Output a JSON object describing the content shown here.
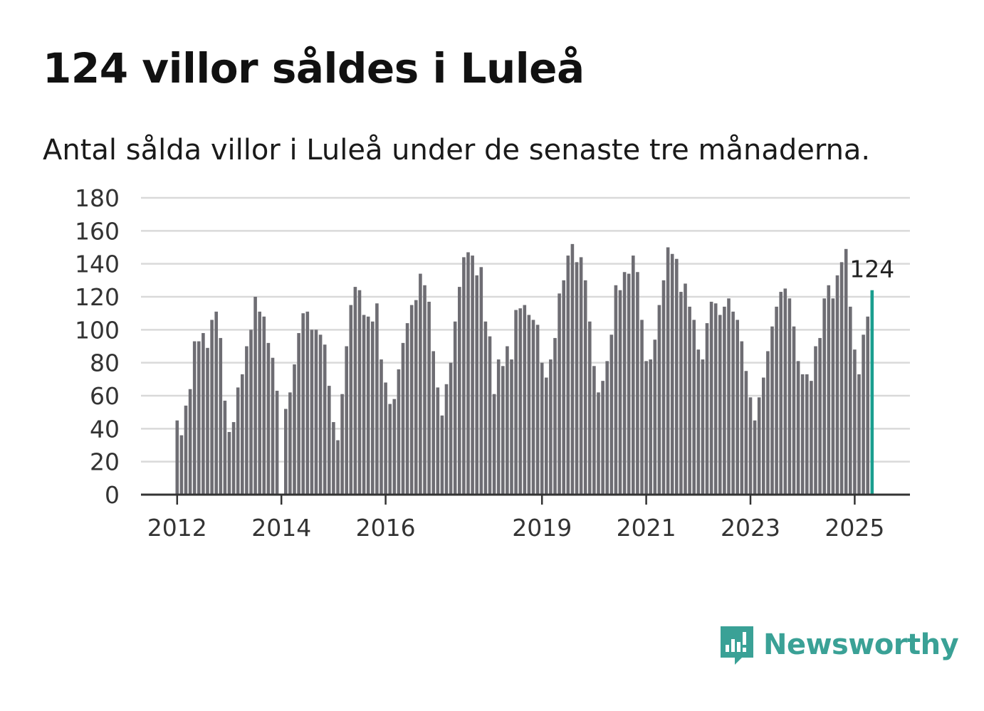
{
  "title": "124 villor såldes i Luleå",
  "subtitle": "Antal sålda villor i Luleå under de senaste tre månaderna.",
  "brand": {
    "name": "Newsworthy",
    "icon": "newsworthy-logo-icon",
    "color": "#3aa196"
  },
  "colors": {
    "bar": "#6e6d73",
    "highlight": "#1a9e8f",
    "grid": "#d9d9d9",
    "axis": "#333333"
  },
  "chart_data": {
    "type": "bar",
    "ylim": [
      0,
      180
    ],
    "yticks": [
      0,
      20,
      40,
      60,
      80,
      100,
      120,
      140,
      160,
      180
    ],
    "xticks": [
      "2012",
      "2014",
      "2016",
      "2019",
      "2021",
      "2023",
      "2025"
    ],
    "grid": true,
    "first_period": "2012-01",
    "highlight_label": "124",
    "series": [
      {
        "values": [
          45,
          36,
          54,
          64,
          93,
          93,
          98,
          89,
          106,
          111,
          95,
          57,
          38,
          44,
          65,
          73,
          90,
          100,
          120,
          111,
          108,
          92,
          83,
          63,
          null,
          52,
          62,
          79,
          98,
          110,
          111,
          100,
          100,
          97,
          91,
          66,
          44,
          33,
          61,
          90,
          115,
          126,
          124,
          109,
          108,
          105,
          116,
          82,
          68,
          55,
          58,
          76,
          92,
          104,
          115,
          118,
          134,
          127,
          117,
          87,
          65,
          48,
          67,
          80,
          105,
          126,
          144,
          147,
          145,
          133,
          138,
          105,
          96,
          61,
          82,
          78,
          90,
          82,
          112,
          113,
          115,
          109,
          106,
          103,
          80,
          71,
          82,
          95,
          122,
          130,
          145,
          152,
          141,
          144,
          130,
          105,
          78,
          62,
          69,
          81,
          97,
          127,
          124,
          135,
          134,
          145,
          135,
          106,
          81,
          82,
          94,
          115,
          130,
          150,
          146,
          143,
          123,
          128,
          114,
          106,
          88,
          82,
          104,
          117,
          116,
          109,
          114,
          119,
          111,
          106,
          93,
          75,
          59,
          45,
          59,
          71,
          87,
          102,
          114,
          123,
          125,
          119,
          102,
          81,
          73,
          73,
          69,
          90,
          95,
          119,
          127,
          119,
          133,
          141,
          149,
          114,
          88,
          73,
          97,
          108,
          124
        ]
      }
    ]
  }
}
